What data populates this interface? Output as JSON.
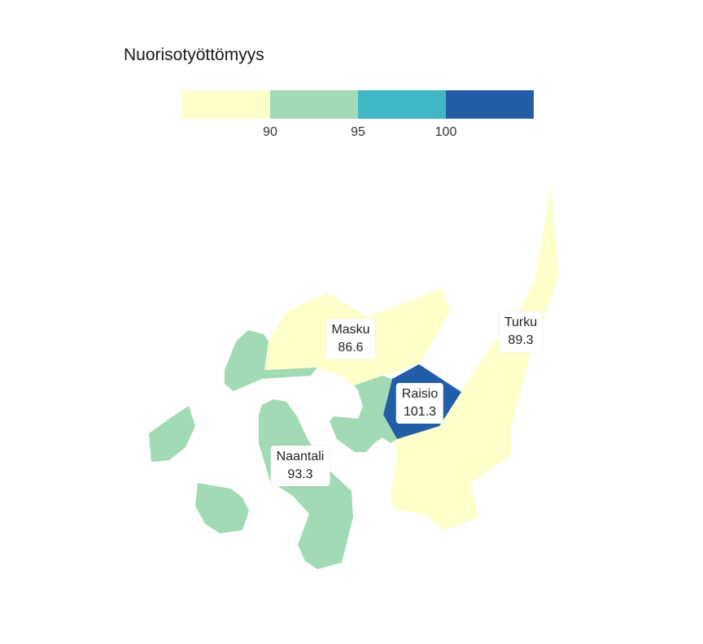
{
  "legend": {
    "title": "Nuorisotyöttömyys",
    "bins": [
      {
        "color": "#ffffcc"
      },
      {
        "color": "#a1dab4"
      },
      {
        "color": "#41b6c4"
      },
      {
        "color": "#225ea8"
      }
    ],
    "ticks": [
      "90",
      "95",
      "100"
    ]
  },
  "regions": [
    {
      "name": "Masku",
      "value": "86.6",
      "color": "#ffffcc"
    },
    {
      "name": "Turku",
      "value": "89.3",
      "color": "#ffffcc"
    },
    {
      "name": "Raisio",
      "value": "101.3",
      "color": "#225ea8"
    },
    {
      "name": "Naantali",
      "value": "93.3",
      "color": "#a1dab4"
    }
  ]
}
